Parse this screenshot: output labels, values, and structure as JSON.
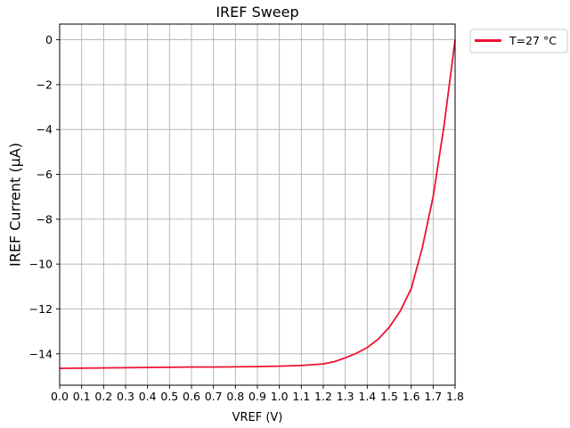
{
  "chart_data": {
    "type": "line",
    "title": "IREF Sweep",
    "xlabel": "VREF (V)",
    "ylabel": "IREF Current (µA)",
    "xlim": [
      0.0,
      1.8
    ],
    "ylim": [
      -15.4,
      0.7
    ],
    "grid": true,
    "legend_position": "outside-top-right",
    "x_ticks": [
      "0.0",
      "0.1",
      "0.2",
      "0.3",
      "0.4",
      "0.5",
      "0.6",
      "0.7",
      "0.8",
      "0.9",
      "1.0",
      "1.1",
      "1.2",
      "1.3",
      "1.4",
      "1.5",
      "1.6",
      "1.7",
      "1.8"
    ],
    "y_ticks": [
      "0",
      "−2",
      "−4",
      "−6",
      "−8",
      "−10",
      "−12",
      "−14"
    ],
    "series": [
      {
        "name": "T=27 °C",
        "color": "#ee1133",
        "x": [
          0.0,
          0.1,
          0.2,
          0.3,
          0.4,
          0.5,
          0.6,
          0.7,
          0.8,
          0.9,
          1.0,
          1.1,
          1.2,
          1.25,
          1.3,
          1.35,
          1.4,
          1.45,
          1.5,
          1.55,
          1.6,
          1.65,
          1.7,
          1.75,
          1.8
        ],
        "y": [
          -14.65,
          -14.64,
          -14.63,
          -14.62,
          -14.61,
          -14.6,
          -14.59,
          -14.59,
          -14.58,
          -14.57,
          -14.55,
          -14.52,
          -14.45,
          -14.35,
          -14.18,
          -13.98,
          -13.72,
          -13.35,
          -12.82,
          -12.1,
          -11.1,
          -9.3,
          -7.0,
          -3.8,
          0.0
        ]
      }
    ]
  }
}
